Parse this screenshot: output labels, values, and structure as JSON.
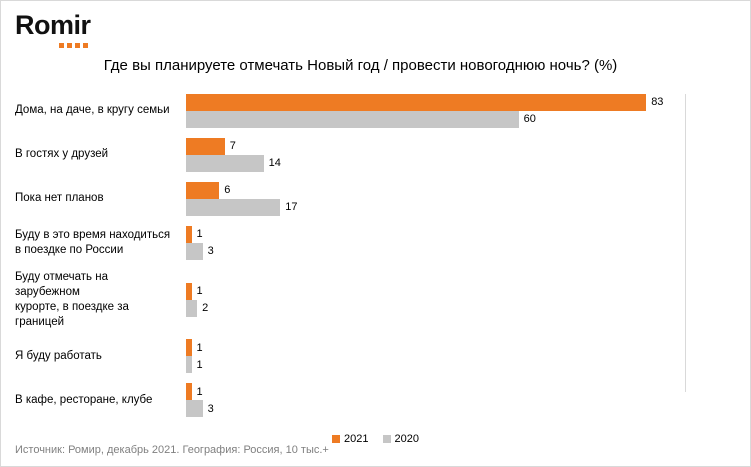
{
  "logo": {
    "text": "Romir",
    "dot_color": "#EE7B23",
    "dot_count": 4
  },
  "title": "Где вы планируете отмечать Новый год / провести новогоднюю ночь? (%)",
  "footer": "Источник: Ромир, декабрь 2021. География: Россия, 10 тыс.+",
  "colors": {
    "series_2021": "#EE7B23",
    "series_2020": "#C6C6C6",
    "plot_border": "#d9d9d9"
  },
  "chart_data": {
    "type": "bar",
    "orientation": "horizontal",
    "title": "Где вы планируете отмечать Новый год / провести новогоднюю ночь? (%)",
    "categories": [
      "Дома, на даче, в кругу семьи",
      "В гостях у друзей",
      "Пока нет планов",
      "Буду в это время находиться\nв поездке по России",
      "Буду отмечать на зарубежном\nкурорте, в поездке за границей",
      "Я буду работать",
      "В кафе, ресторане, клубе"
    ],
    "series": [
      {
        "name": "2021",
        "color": "#EE7B23",
        "values": [
          83,
          7,
          6,
          1,
          1,
          1,
          1
        ]
      },
      {
        "name": "2020",
        "color": "#C6C6C6",
        "values": [
          60,
          14,
          17,
          3,
          2,
          1,
          3
        ]
      }
    ],
    "xlim": [
      0,
      90
    ],
    "grid": false,
    "legend_position": "bottom",
    "data_labels": true
  }
}
